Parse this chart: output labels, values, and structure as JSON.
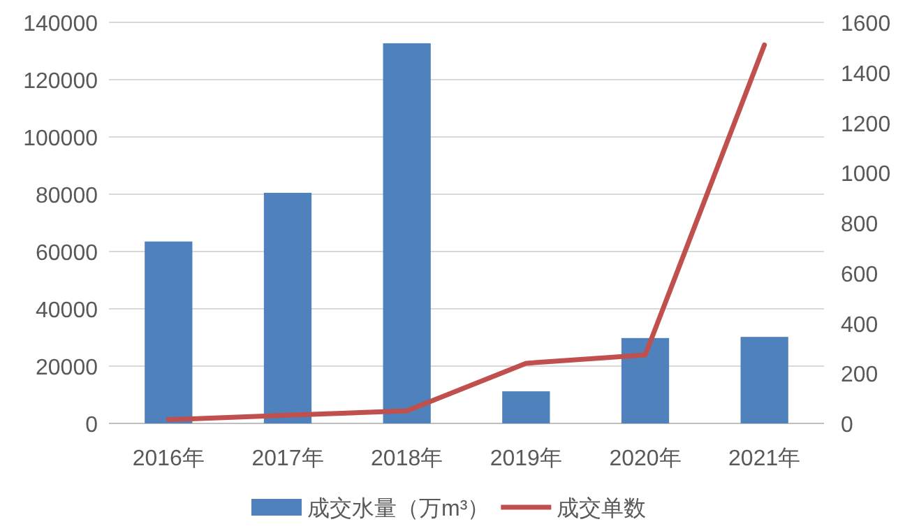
{
  "chart_data": {
    "type": "bar",
    "categories": [
      "2016年",
      "2017年",
      "2018年",
      "2019年",
      "2020年",
      "2021年"
    ],
    "series": [
      {
        "name": "成交水量（万m³）",
        "color": "#4f81bd",
        "values": [
          63500,
          80500,
          132700,
          11200,
          29800,
          30200
        ]
      },
      {
        "name": "成交单数",
        "type": "line",
        "axis": "y2",
        "color": "#c0504d",
        "values": [
          15,
          33,
          50,
          240,
          273,
          1510
        ]
      }
    ],
    "ylim": [
      0,
      140000
    ],
    "yticks": [
      0,
      20000,
      40000,
      60000,
      80000,
      100000,
      120000,
      140000
    ],
    "y2lim": [
      0,
      1600
    ],
    "y2ticks": [
      0,
      200,
      400,
      600,
      800,
      1000,
      1200,
      1400,
      1600
    ],
    "grid": "y",
    "legend": "bottom",
    "marker": "none",
    "line_style": "solid"
  }
}
